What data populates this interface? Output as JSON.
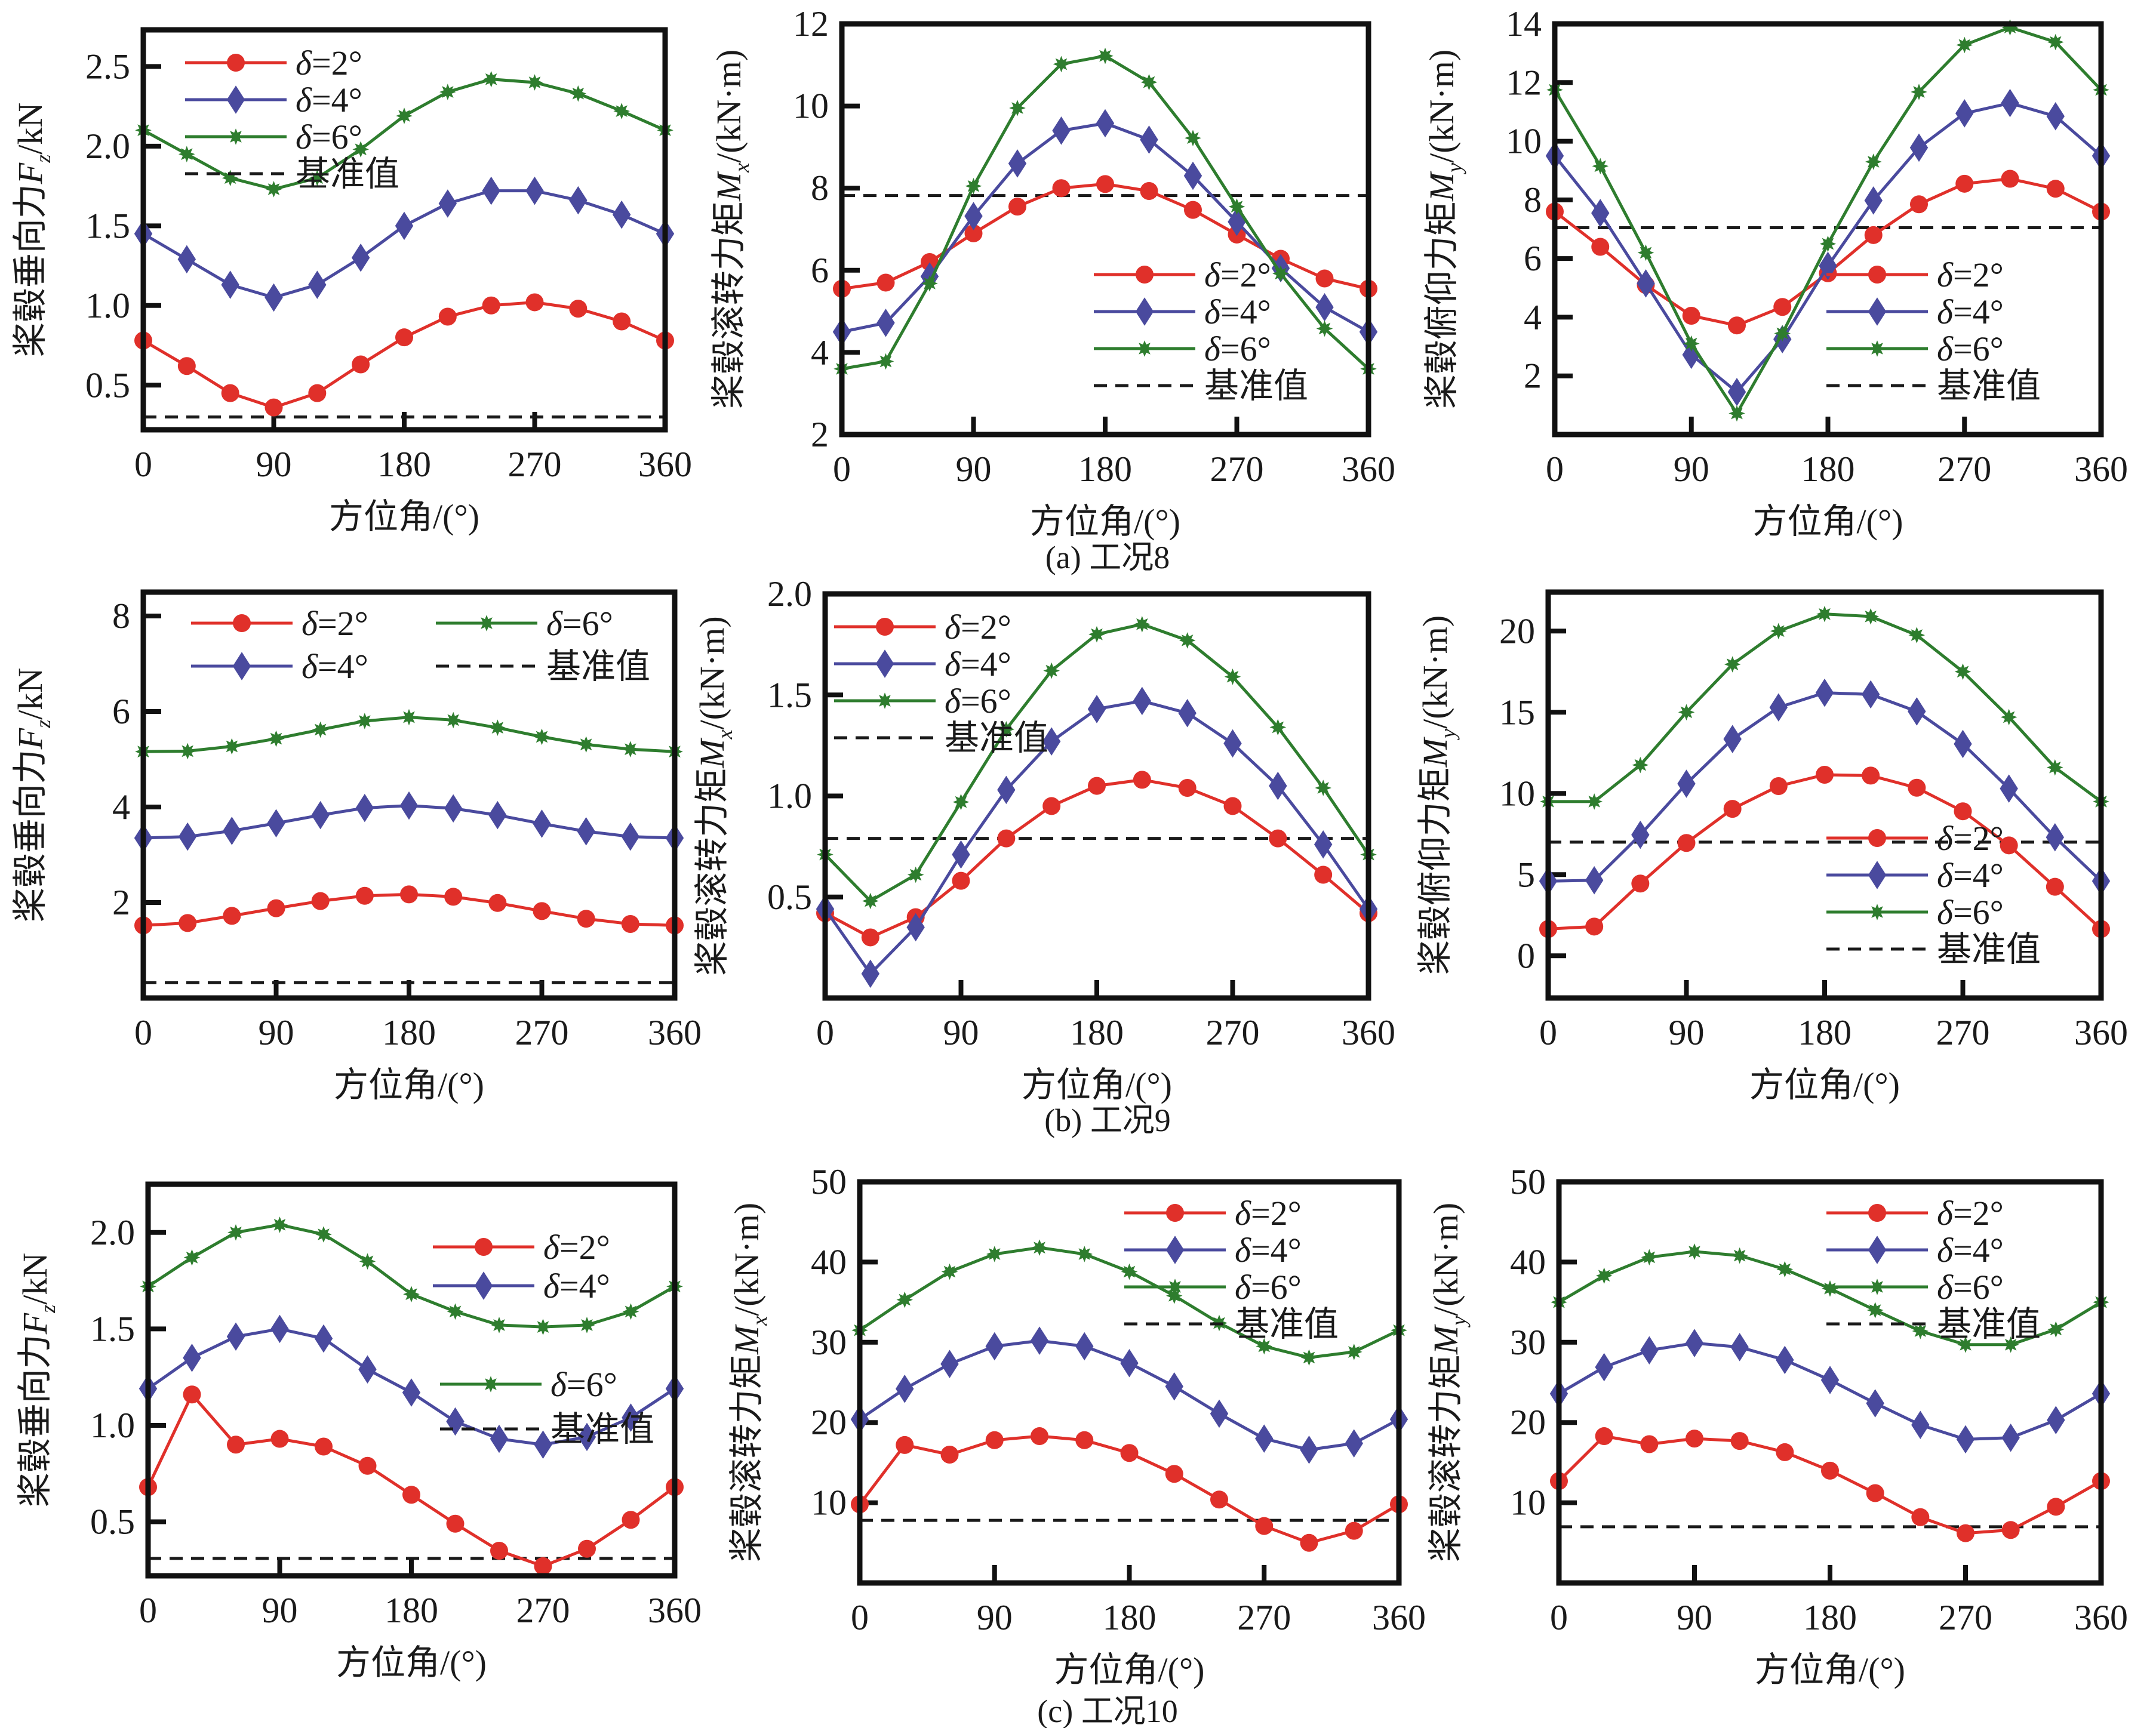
{
  "figure": {
    "captions": [
      "(a) 工况8",
      "(b) 工况9",
      "(c) 工况10"
    ],
    "colors": {
      "delta2": "#e0302a",
      "delta4": "#4a4a9e",
      "delta6": "#2e7d2e",
      "baseline": "#1a1a1a"
    }
  },
  "chart_data": [
    {
      "id": "a1",
      "group": "(a) 工况8",
      "type": "line",
      "ylabel": {
        "prefix": "桨毂垂向力",
        "var": "F",
        "sub": "z",
        "suffix": "/kN"
      },
      "xlabel": "方位角/(°)",
      "x": [
        0,
        30,
        60,
        90,
        120,
        150,
        180,
        210,
        240,
        270,
        300,
        330,
        360
      ],
      "xlim": [
        0,
        360
      ],
      "xticks": [
        0,
        90,
        180,
        270,
        360
      ],
      "ylim": [
        0.22,
        2.73
      ],
      "yticks": [
        0.5,
        1.0,
        1.5,
        2.0,
        2.5
      ],
      "ytick_labels": [
        "0.5",
        "1.0",
        "1.5",
        "2.0",
        "2.5"
      ],
      "legend": "top-left",
      "series": [
        {
          "name": "δ=2°",
          "marker": "circle",
          "values": [
            0.78,
            0.62,
            0.45,
            0.36,
            0.45,
            0.63,
            0.8,
            0.93,
            1.0,
            1.02,
            0.98,
            0.9,
            0.78
          ]
        },
        {
          "name": "δ=4°",
          "marker": "diamond",
          "values": [
            1.45,
            1.29,
            1.13,
            1.05,
            1.13,
            1.3,
            1.5,
            1.64,
            1.72,
            1.72,
            1.66,
            1.57,
            1.45
          ]
        },
        {
          "name": "δ=6°",
          "marker": "star",
          "values": [
            2.1,
            1.95,
            1.8,
            1.73,
            1.8,
            1.98,
            2.19,
            2.34,
            2.42,
            2.4,
            2.33,
            2.22,
            2.1
          ]
        }
      ],
      "baseline": {
        "name": "基准值",
        "value": 0.3
      }
    },
    {
      "id": "a2",
      "group": "(a) 工况8",
      "type": "line",
      "ylabel": {
        "prefix": "桨毂滚转力矩",
        "var": "M",
        "sub": "x",
        "suffix": "/(kN·m)"
      },
      "xlabel": "方位角/(°)",
      "x": [
        0,
        30,
        60,
        90,
        120,
        150,
        180,
        210,
        240,
        270,
        300,
        330,
        360
      ],
      "xlim": [
        0,
        360
      ],
      "xticks": [
        0,
        90,
        180,
        270,
        360
      ],
      "ylim": [
        2,
        12
      ],
      "yticks": [
        2,
        4,
        6,
        8,
        10,
        12
      ],
      "ytick_labels": [
        "2",
        "4",
        "6",
        "8",
        "10",
        "12"
      ],
      "legend": "bottom-right",
      "series": [
        {
          "name": "δ=2°",
          "marker": "circle",
          "values": [
            5.55,
            5.7,
            6.2,
            6.9,
            7.55,
            8.0,
            8.1,
            7.93,
            7.47,
            6.87,
            6.28,
            5.8,
            5.55
          ]
        },
        {
          "name": "δ=4°",
          "marker": "diamond",
          "values": [
            4.5,
            4.72,
            5.85,
            7.32,
            8.6,
            9.4,
            9.58,
            9.18,
            8.3,
            7.18,
            6.05,
            5.1,
            4.5
          ]
        },
        {
          "name": "δ=6°",
          "marker": "star",
          "values": [
            3.6,
            3.78,
            5.68,
            8.05,
            9.95,
            11.02,
            11.22,
            10.58,
            9.22,
            7.55,
            5.92,
            4.58,
            3.6
          ]
        }
      ],
      "baseline": {
        "name": "基准值",
        "value": 7.82
      }
    },
    {
      "id": "a3",
      "group": "(a) 工况8",
      "type": "line",
      "ylabel": {
        "prefix": "桨毂俯仰力矩",
        "var": "M",
        "sub": "y",
        "suffix": "/(kN·m)"
      },
      "xlabel": "方位角/(°)",
      "x": [
        0,
        30,
        60,
        90,
        120,
        150,
        180,
        210,
        240,
        270,
        300,
        330,
        360
      ],
      "xlim": [
        0,
        360
      ],
      "xticks": [
        0,
        90,
        180,
        270,
        360
      ],
      "ylim": [
        0,
        14
      ],
      "yticks": [
        2,
        4,
        6,
        8,
        10,
        12,
        14
      ],
      "ytick_labels": [
        "2",
        "4",
        "6",
        "8",
        "10",
        "12",
        "14"
      ],
      "legend": "bottom-right",
      "series": [
        {
          "name": "δ=2°",
          "marker": "circle",
          "values": [
            7.6,
            6.4,
            5.1,
            4.05,
            3.72,
            4.35,
            5.5,
            6.8,
            7.85,
            8.55,
            8.72,
            8.38,
            7.6
          ]
        },
        {
          "name": "δ=4°",
          "marker": "diamond",
          "values": [
            9.5,
            7.55,
            5.15,
            2.72,
            1.45,
            3.25,
            5.75,
            7.98,
            9.78,
            10.95,
            11.3,
            10.85,
            9.5
          ]
        },
        {
          "name": "δ=6°",
          "marker": "star",
          "values": [
            11.75,
            9.15,
            6.2,
            3.1,
            0.72,
            3.45,
            6.5,
            9.3,
            11.68,
            13.28,
            13.88,
            13.38,
            11.75
          ]
        }
      ],
      "baseline": {
        "name": "基准值",
        "value": 7.05
      }
    },
    {
      "id": "b1",
      "group": "(b) 工况9",
      "type": "line",
      "ylabel": {
        "prefix": "桨毂垂向力",
        "var": "F",
        "sub": "z",
        "suffix": "/kN"
      },
      "xlabel": "方位角/(°)",
      "x": [
        0,
        30,
        60,
        90,
        120,
        150,
        180,
        210,
        240,
        270,
        300,
        330,
        360
      ],
      "xlim": [
        0,
        360
      ],
      "xticks": [
        0,
        90,
        180,
        270,
        360
      ],
      "ylim": [
        0,
        8.5
      ],
      "yticks": [
        2,
        4,
        6,
        8
      ],
      "ytick_labels": [
        "2",
        "4",
        "6",
        "8"
      ],
      "legend": "top-left-two-columns",
      "series": [
        {
          "name": "δ=2°",
          "marker": "circle",
          "values": [
            1.52,
            1.57,
            1.72,
            1.88,
            2.03,
            2.14,
            2.17,
            2.12,
            1.99,
            1.82,
            1.66,
            1.55,
            1.52
          ]
        },
        {
          "name": "δ=4°",
          "marker": "diamond",
          "values": [
            3.35,
            3.38,
            3.5,
            3.66,
            3.83,
            3.98,
            4.03,
            3.97,
            3.83,
            3.65,
            3.49,
            3.38,
            3.35
          ]
        },
        {
          "name": "δ=6°",
          "marker": "star",
          "values": [
            5.16,
            5.17,
            5.27,
            5.43,
            5.62,
            5.8,
            5.88,
            5.82,
            5.66,
            5.47,
            5.31,
            5.21,
            5.16
          ]
        }
      ],
      "baseline": {
        "name": "基准值",
        "value": 0.32
      }
    },
    {
      "id": "b2",
      "group": "(b) 工况9",
      "type": "line",
      "ylabel": {
        "prefix": "桨毂滚转力矩",
        "var": "M",
        "sub": "x",
        "suffix": "/(kN·m)"
      },
      "xlabel": "方位角/(°)",
      "x": [
        0,
        30,
        60,
        90,
        120,
        150,
        180,
        210,
        240,
        270,
        300,
        330,
        360
      ],
      "xlim": [
        0,
        360
      ],
      "xticks": [
        0,
        90,
        180,
        270,
        360
      ],
      "ylim": [
        0,
        2.0
      ],
      "yticks": [
        0.5,
        1.0,
        1.5,
        2.0
      ],
      "ytick_labels": [
        "0.5",
        "1.0",
        "1.5",
        "2.0"
      ],
      "legend": "top-left",
      "series": [
        {
          "name": "δ=2°",
          "marker": "circle",
          "values": [
            0.42,
            0.3,
            0.4,
            0.58,
            0.79,
            0.95,
            1.05,
            1.08,
            1.04,
            0.95,
            0.79,
            0.61,
            0.42
          ]
        },
        {
          "name": "δ=4°",
          "marker": "diamond",
          "values": [
            0.44,
            0.12,
            0.35,
            0.71,
            1.03,
            1.27,
            1.43,
            1.47,
            1.41,
            1.26,
            1.05,
            0.76,
            0.44
          ]
        },
        {
          "name": "δ=6°",
          "marker": "star",
          "values": [
            0.71,
            0.48,
            0.61,
            0.97,
            1.33,
            1.62,
            1.8,
            1.85,
            1.77,
            1.59,
            1.34,
            1.04,
            0.71
          ]
        }
      ],
      "baseline": {
        "name": "基准值",
        "value": 0.79
      }
    },
    {
      "id": "b3",
      "group": "(b) 工况9",
      "type": "line",
      "ylabel": {
        "prefix": "桨毂俯仰力矩",
        "var": "M",
        "sub": "y",
        "suffix": "/(kN·m)"
      },
      "xlabel": "方位角/(°)",
      "x": [
        0,
        30,
        60,
        90,
        120,
        150,
        180,
        210,
        240,
        270,
        300,
        330,
        360
      ],
      "xlim": [
        0,
        360
      ],
      "xticks": [
        0,
        90,
        180,
        270,
        360
      ],
      "ylim": [
        -2.6,
        22.4
      ],
      "yticks": [
        0,
        5,
        10,
        15,
        20
      ],
      "ytick_labels": [
        "0",
        "5",
        "10",
        "15",
        "20"
      ],
      "legend": "bottom-right",
      "series": [
        {
          "name": "δ=2°",
          "marker": "circle",
          "values": [
            1.65,
            1.8,
            4.45,
            6.95,
            9.05,
            10.45,
            11.15,
            11.1,
            10.35,
            8.9,
            6.8,
            4.25,
            1.65
          ]
        },
        {
          "name": "δ=4°",
          "marker": "diamond",
          "values": [
            4.6,
            4.65,
            7.45,
            10.6,
            13.35,
            15.3,
            16.2,
            16.1,
            15.05,
            13.05,
            10.3,
            7.3,
            4.6
          ]
        },
        {
          "name": "δ=6°",
          "marker": "star",
          "values": [
            9.5,
            9.5,
            11.75,
            15.0,
            17.95,
            20.0,
            21.05,
            20.9,
            19.75,
            17.5,
            14.7,
            11.6,
            9.5
          ]
        }
      ],
      "baseline": {
        "name": "基准值",
        "value": 7.0
      }
    },
    {
      "id": "c1",
      "group": "(c) 工况10",
      "type": "line",
      "ylabel": {
        "prefix": "桨毂垂向力",
        "var": "F",
        "sub": "z",
        "suffix": "/kN"
      },
      "xlabel": "方位角/(°)",
      "x": [
        0,
        30,
        60,
        90,
        120,
        150,
        180,
        210,
        240,
        270,
        300,
        330,
        360
      ],
      "xlim": [
        0,
        360
      ],
      "xticks": [
        0,
        90,
        180,
        270,
        360
      ],
      "ylim": [
        0.22,
        2.25
      ],
      "yticks": [
        0.5,
        1.0,
        1.5,
        2.0
      ],
      "ytick_labels": [
        "0.5",
        "1.0",
        "1.5",
        "2.0"
      ],
      "legend": "right-split",
      "series": [
        {
          "name": "δ=2°",
          "marker": "circle",
          "values": [
            0.68,
            1.16,
            0.9,
            0.93,
            0.89,
            0.79,
            0.64,
            0.49,
            0.35,
            0.27,
            0.36,
            0.51,
            0.68
          ]
        },
        {
          "name": "δ=4°",
          "marker": "diamond",
          "values": [
            1.19,
            1.35,
            1.46,
            1.5,
            1.45,
            1.29,
            1.17,
            1.02,
            0.93,
            0.9,
            0.94,
            1.04,
            1.19
          ]
        },
        {
          "name": "δ=6°",
          "marker": "star",
          "values": [
            1.72,
            1.87,
            2.0,
            2.04,
            1.99,
            1.85,
            1.68,
            1.59,
            1.52,
            1.51,
            1.52,
            1.59,
            1.72
          ]
        }
      ],
      "baseline": {
        "name": "基准值",
        "value": 0.31
      }
    },
    {
      "id": "c2",
      "group": "(c) 工况10",
      "type": "line",
      "ylabel": {
        "prefix": "桨毂滚转力矩",
        "var": "M",
        "sub": "x",
        "suffix": "/(kN·m)"
      },
      "xlabel": "方位角/(°)",
      "x": [
        0,
        30,
        60,
        90,
        120,
        150,
        180,
        210,
        240,
        270,
        300,
        330,
        360
      ],
      "xlim": [
        0,
        360
      ],
      "xticks": [
        0,
        90,
        180,
        270,
        360
      ],
      "ylim": [
        0,
        50
      ],
      "yticks": [
        10,
        20,
        30,
        40,
        50
      ],
      "ytick_labels": [
        "10",
        "20",
        "30",
        "40",
        "50"
      ],
      "legend": "top-right",
      "series": [
        {
          "name": "δ=2°",
          "marker": "circle",
          "values": [
            9.8,
            17.2,
            16.0,
            17.8,
            18.3,
            17.8,
            16.2,
            13.6,
            10.4,
            7.1,
            5.0,
            6.5,
            9.8
          ]
        },
        {
          "name": "δ=4°",
          "marker": "diamond",
          "values": [
            20.4,
            24.2,
            27.3,
            29.5,
            30.2,
            29.5,
            27.4,
            24.5,
            21.1,
            18.0,
            16.6,
            17.4,
            20.4
          ]
        },
        {
          "name": "δ=6°",
          "marker": "star",
          "values": [
            31.5,
            35.3,
            38.8,
            41.0,
            41.8,
            41.0,
            38.8,
            35.8,
            32.4,
            29.5,
            28.1,
            28.8,
            31.5
          ]
        }
      ],
      "baseline": {
        "name": "基准值",
        "value": 7.8
      }
    },
    {
      "id": "c3",
      "group": "(c) 工况10",
      "type": "line",
      "ylabel": {
        "prefix": "桨毂滚转力矩",
        "var": "M",
        "sub": "y",
        "suffix": "/(kN·m)"
      },
      "xlabel": "方位角/(°)",
      "x": [
        0,
        30,
        60,
        90,
        120,
        150,
        180,
        210,
        240,
        270,
        300,
        330,
        360
      ],
      "xlim": [
        0,
        360
      ],
      "xticks": [
        0,
        90,
        180,
        270,
        360
      ],
      "ylim": [
        0,
        50
      ],
      "yticks": [
        10,
        20,
        30,
        40,
        50
      ],
      "ytick_labels": [
        "10",
        "20",
        "30",
        "40",
        "50"
      ],
      "legend": "top-right",
      "series": [
        {
          "name": "δ=2°",
          "marker": "circle",
          "values": [
            12.7,
            18.3,
            17.3,
            18.0,
            17.7,
            16.3,
            14.0,
            11.2,
            8.2,
            6.2,
            6.6,
            9.5,
            12.7
          ]
        },
        {
          "name": "δ=4°",
          "marker": "diamond",
          "values": [
            23.6,
            26.9,
            29.0,
            29.9,
            29.4,
            27.8,
            25.3,
            22.4,
            19.7,
            17.9,
            18.1,
            20.3,
            23.6
          ]
        },
        {
          "name": "δ=6°",
          "marker": "star",
          "values": [
            35.0,
            38.3,
            40.6,
            41.3,
            40.8,
            39.1,
            36.7,
            34.0,
            31.4,
            29.7,
            29.7,
            31.6,
            35.0
          ]
        }
      ],
      "baseline": {
        "name": "基准值",
        "value": 7.0
      }
    }
  ]
}
